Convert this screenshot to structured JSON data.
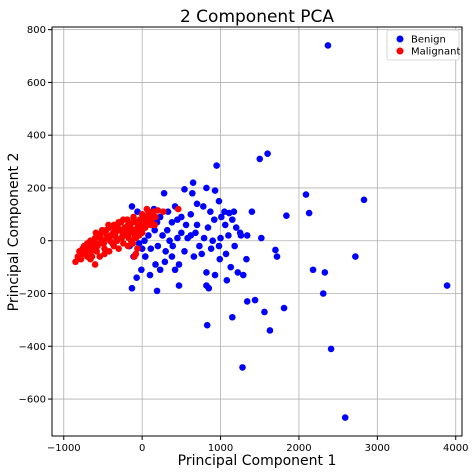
{
  "chart_data": {
    "type": "scatter",
    "title": "2 Component PCA",
    "xlabel": "Principal Component 1",
    "ylabel": "Principal Component 2",
    "xlim": [
      -1150,
      4080
    ],
    "ylim": [
      -740,
      810
    ],
    "xticks": [
      -1000,
      0,
      1000,
      2000,
      3000,
      4000
    ],
    "yticks": [
      -600,
      -400,
      -200,
      0,
      200,
      400,
      600,
      800
    ],
    "grid": true,
    "legend": "top-right",
    "series": [
      {
        "name": "Benign",
        "color": "#0000ff",
        "points": [
          [
            2370,
            740
          ],
          [
            1600,
            330
          ],
          [
            1500,
            310
          ],
          [
            950,
            285
          ],
          [
            2830,
            155
          ],
          [
            2090,
            175
          ],
          [
            1840,
            95
          ],
          [
            2130,
            105
          ],
          [
            1700,
            -35
          ],
          [
            1720,
            -60
          ],
          [
            2720,
            -60
          ],
          [
            2180,
            -110
          ],
          [
            2330,
            -120
          ],
          [
            2310,
            -200
          ],
          [
            1810,
            -255
          ],
          [
            1560,
            -270
          ],
          [
            1340,
            -230
          ],
          [
            1440,
            -225
          ],
          [
            1150,
            -290
          ],
          [
            830,
            -320
          ],
          [
            1630,
            -340
          ],
          [
            2410,
            -410
          ],
          [
            1280,
            -480
          ],
          [
            2590,
            -670
          ],
          [
            3890,
            -170
          ],
          [
            650,
            220
          ],
          [
            540,
            195
          ],
          [
            640,
            180
          ],
          [
            820,
            200
          ],
          [
            930,
            190
          ],
          [
            980,
            150
          ],
          [
            780,
            130
          ],
          [
            700,
            140
          ],
          [
            620,
            100
          ],
          [
            870,
            110
          ],
          [
            1050,
            110
          ],
          [
            1110,
            105
          ],
          [
            1170,
            110
          ],
          [
            1010,
            90
          ],
          [
            920,
            80
          ],
          [
            500,
            90
          ],
          [
            450,
            80
          ],
          [
            560,
            60
          ],
          [
            380,
            70
          ],
          [
            280,
            180
          ],
          [
            150,
            120
          ],
          [
            -130,
            130
          ],
          [
            -60,
            110
          ],
          [
            190,
            70
          ],
          [
            320,
            40
          ],
          [
            700,
            60
          ],
          [
            840,
            50
          ],
          [
            1060,
            60
          ],
          [
            1200,
            50
          ],
          [
            1250,
            30
          ],
          [
            1340,
            20
          ],
          [
            1400,
            110
          ],
          [
            1520,
            10
          ],
          [
            1180,
            -20
          ],
          [
            1070,
            -50
          ],
          [
            990,
            -70
          ],
          [
            880,
            -30
          ],
          [
            790,
            10
          ],
          [
            730,
            -20
          ],
          [
            660,
            -60
          ],
          [
            540,
            -40
          ],
          [
            470,
            -90
          ],
          [
            420,
            -110
          ],
          [
            380,
            -60
          ],
          [
            290,
            -80
          ],
          [
            230,
            -110
          ],
          [
            170,
            -90
          ],
          [
            100,
            -130
          ],
          [
            40,
            -60
          ],
          [
            -10,
            -110
          ],
          [
            -70,
            -140
          ],
          [
            -110,
            -60
          ],
          [
            -130,
            -180
          ],
          [
            190,
            -190
          ],
          [
            470,
            -170
          ],
          [
            820,
            -170
          ],
          [
            850,
            -180
          ],
          [
            1130,
            -100
          ],
          [
            1220,
            -120
          ],
          [
            1290,
            -130
          ],
          [
            1330,
            -70
          ],
          [
            1080,
            -150
          ],
          [
            930,
            -130
          ],
          [
            820,
            -120
          ],
          [
            980,
            -20
          ],
          [
            1100,
            20
          ],
          [
            620,
            20
          ],
          [
            450,
            10
          ],
          [
            350,
            0
          ],
          [
            260,
            20
          ],
          [
            160,
            40
          ],
          [
            80,
            20
          ],
          [
            30,
            0
          ],
          [
            0,
            -30
          ],
          [
            -40,
            -10
          ],
          [
            110,
            -30
          ],
          [
            200,
            -20
          ],
          [
            300,
            -40
          ],
          [
            390,
            -20
          ],
          [
            500,
            30
          ],
          [
            580,
            10
          ],
          [
            680,
            30
          ],
          [
            760,
            -50
          ],
          [
            900,
            0
          ],
          [
            1000,
            10
          ],
          [
            1150,
            80
          ],
          [
            1260,
            20
          ],
          [
            -90,
            20
          ],
          [
            -160,
            -20
          ],
          [
            -200,
            30
          ],
          [
            40,
            90
          ],
          [
            120,
            60
          ],
          [
            230,
            90
          ],
          [
            330,
            110
          ],
          [
            420,
            130
          ]
        ]
      },
      {
        "name": "Malignant",
        "color": "#ff0000",
        "points": [
          [
            -850,
            -80
          ],
          [
            -820,
            -60
          ],
          [
            -800,
            -40
          ],
          [
            -780,
            -70
          ],
          [
            -760,
            -50
          ],
          [
            -740,
            -20
          ],
          [
            -720,
            -40
          ],
          [
            -700,
            -10
          ],
          [
            -680,
            -30
          ],
          [
            -660,
            0
          ],
          [
            -640,
            -60
          ],
          [
            -620,
            -20
          ],
          [
            -600,
            10
          ],
          [
            -580,
            -40
          ],
          [
            -560,
            20
          ],
          [
            -540,
            -10
          ],
          [
            -520,
            30
          ],
          [
            -500,
            0
          ],
          [
            -480,
            -30
          ],
          [
            -460,
            40
          ],
          [
            -440,
            10
          ],
          [
            -420,
            50
          ],
          [
            -400,
            20
          ],
          [
            -380,
            -10
          ],
          [
            -360,
            60
          ],
          [
            -340,
            30
          ],
          [
            -320,
            0
          ],
          [
            -300,
            70
          ],
          [
            -280,
            40
          ],
          [
            -260,
            10
          ],
          [
            -240,
            80
          ],
          [
            -220,
            50
          ],
          [
            -200,
            20
          ],
          [
            -180,
            60
          ],
          [
            -160,
            30
          ],
          [
            -140,
            0
          ],
          [
            -120,
            70
          ],
          [
            -100,
            40
          ],
          [
            -80,
            10
          ],
          [
            -60,
            50
          ],
          [
            -40,
            20
          ],
          [
            -20,
            60
          ],
          [
            0,
            30
          ],
          [
            20,
            80
          ],
          [
            40,
            50
          ],
          [
            60,
            90
          ],
          [
            80,
            110
          ],
          [
            100,
            100
          ],
          [
            120,
            80
          ],
          [
            160,
            60
          ],
          [
            60,
            120
          ],
          [
            140,
            110
          ],
          [
            170,
            90
          ],
          [
            200,
            115
          ],
          [
            270,
            110
          ],
          [
            -720,
            -50
          ],
          [
            -690,
            -20
          ],
          [
            -650,
            -40
          ],
          [
            -610,
            0
          ],
          [
            -570,
            -20
          ],
          [
            -530,
            10
          ],
          [
            -490,
            -10
          ],
          [
            -450,
            20
          ],
          [
            -410,
            0
          ],
          [
            -370,
            30
          ],
          [
            -330,
            10
          ],
          [
            -290,
            40
          ],
          [
            -250,
            20
          ],
          [
            -210,
            50
          ],
          [
            -170,
            10
          ],
          [
            -130,
            40
          ],
          [
            -90,
            20
          ],
          [
            -50,
            30
          ],
          [
            -10,
            40
          ],
          [
            -600,
            -90
          ],
          [
            -540,
            -60
          ],
          [
            -480,
            -50
          ],
          [
            -420,
            -40
          ],
          [
            -360,
            -20
          ],
          [
            -300,
            -30
          ],
          [
            -240,
            -10
          ],
          [
            -180,
            -20
          ],
          [
            -120,
            -10
          ],
          [
            -60,
            -30
          ],
          [
            -100,
            -60
          ],
          [
            -660,
            -70
          ],
          [
            -760,
            -30
          ],
          [
            -700,
            -60
          ],
          [
            -590,
            30
          ],
          [
            -510,
            40
          ],
          [
            -430,
            60
          ],
          [
            -350,
            50
          ],
          [
            -270,
            70
          ],
          [
            -190,
            80
          ],
          [
            -110,
            90
          ],
          [
            -30,
            80
          ],
          [
            50,
            70
          ],
          [
            110,
            60
          ],
          [
            0,
            100
          ],
          [
            -70,
            70
          ],
          [
            460,
            120
          ],
          [
            -80,
            -50
          ],
          [
            -150,
            50
          ],
          [
            -230,
            30
          ],
          [
            -310,
            50
          ]
        ]
      }
    ]
  }
}
